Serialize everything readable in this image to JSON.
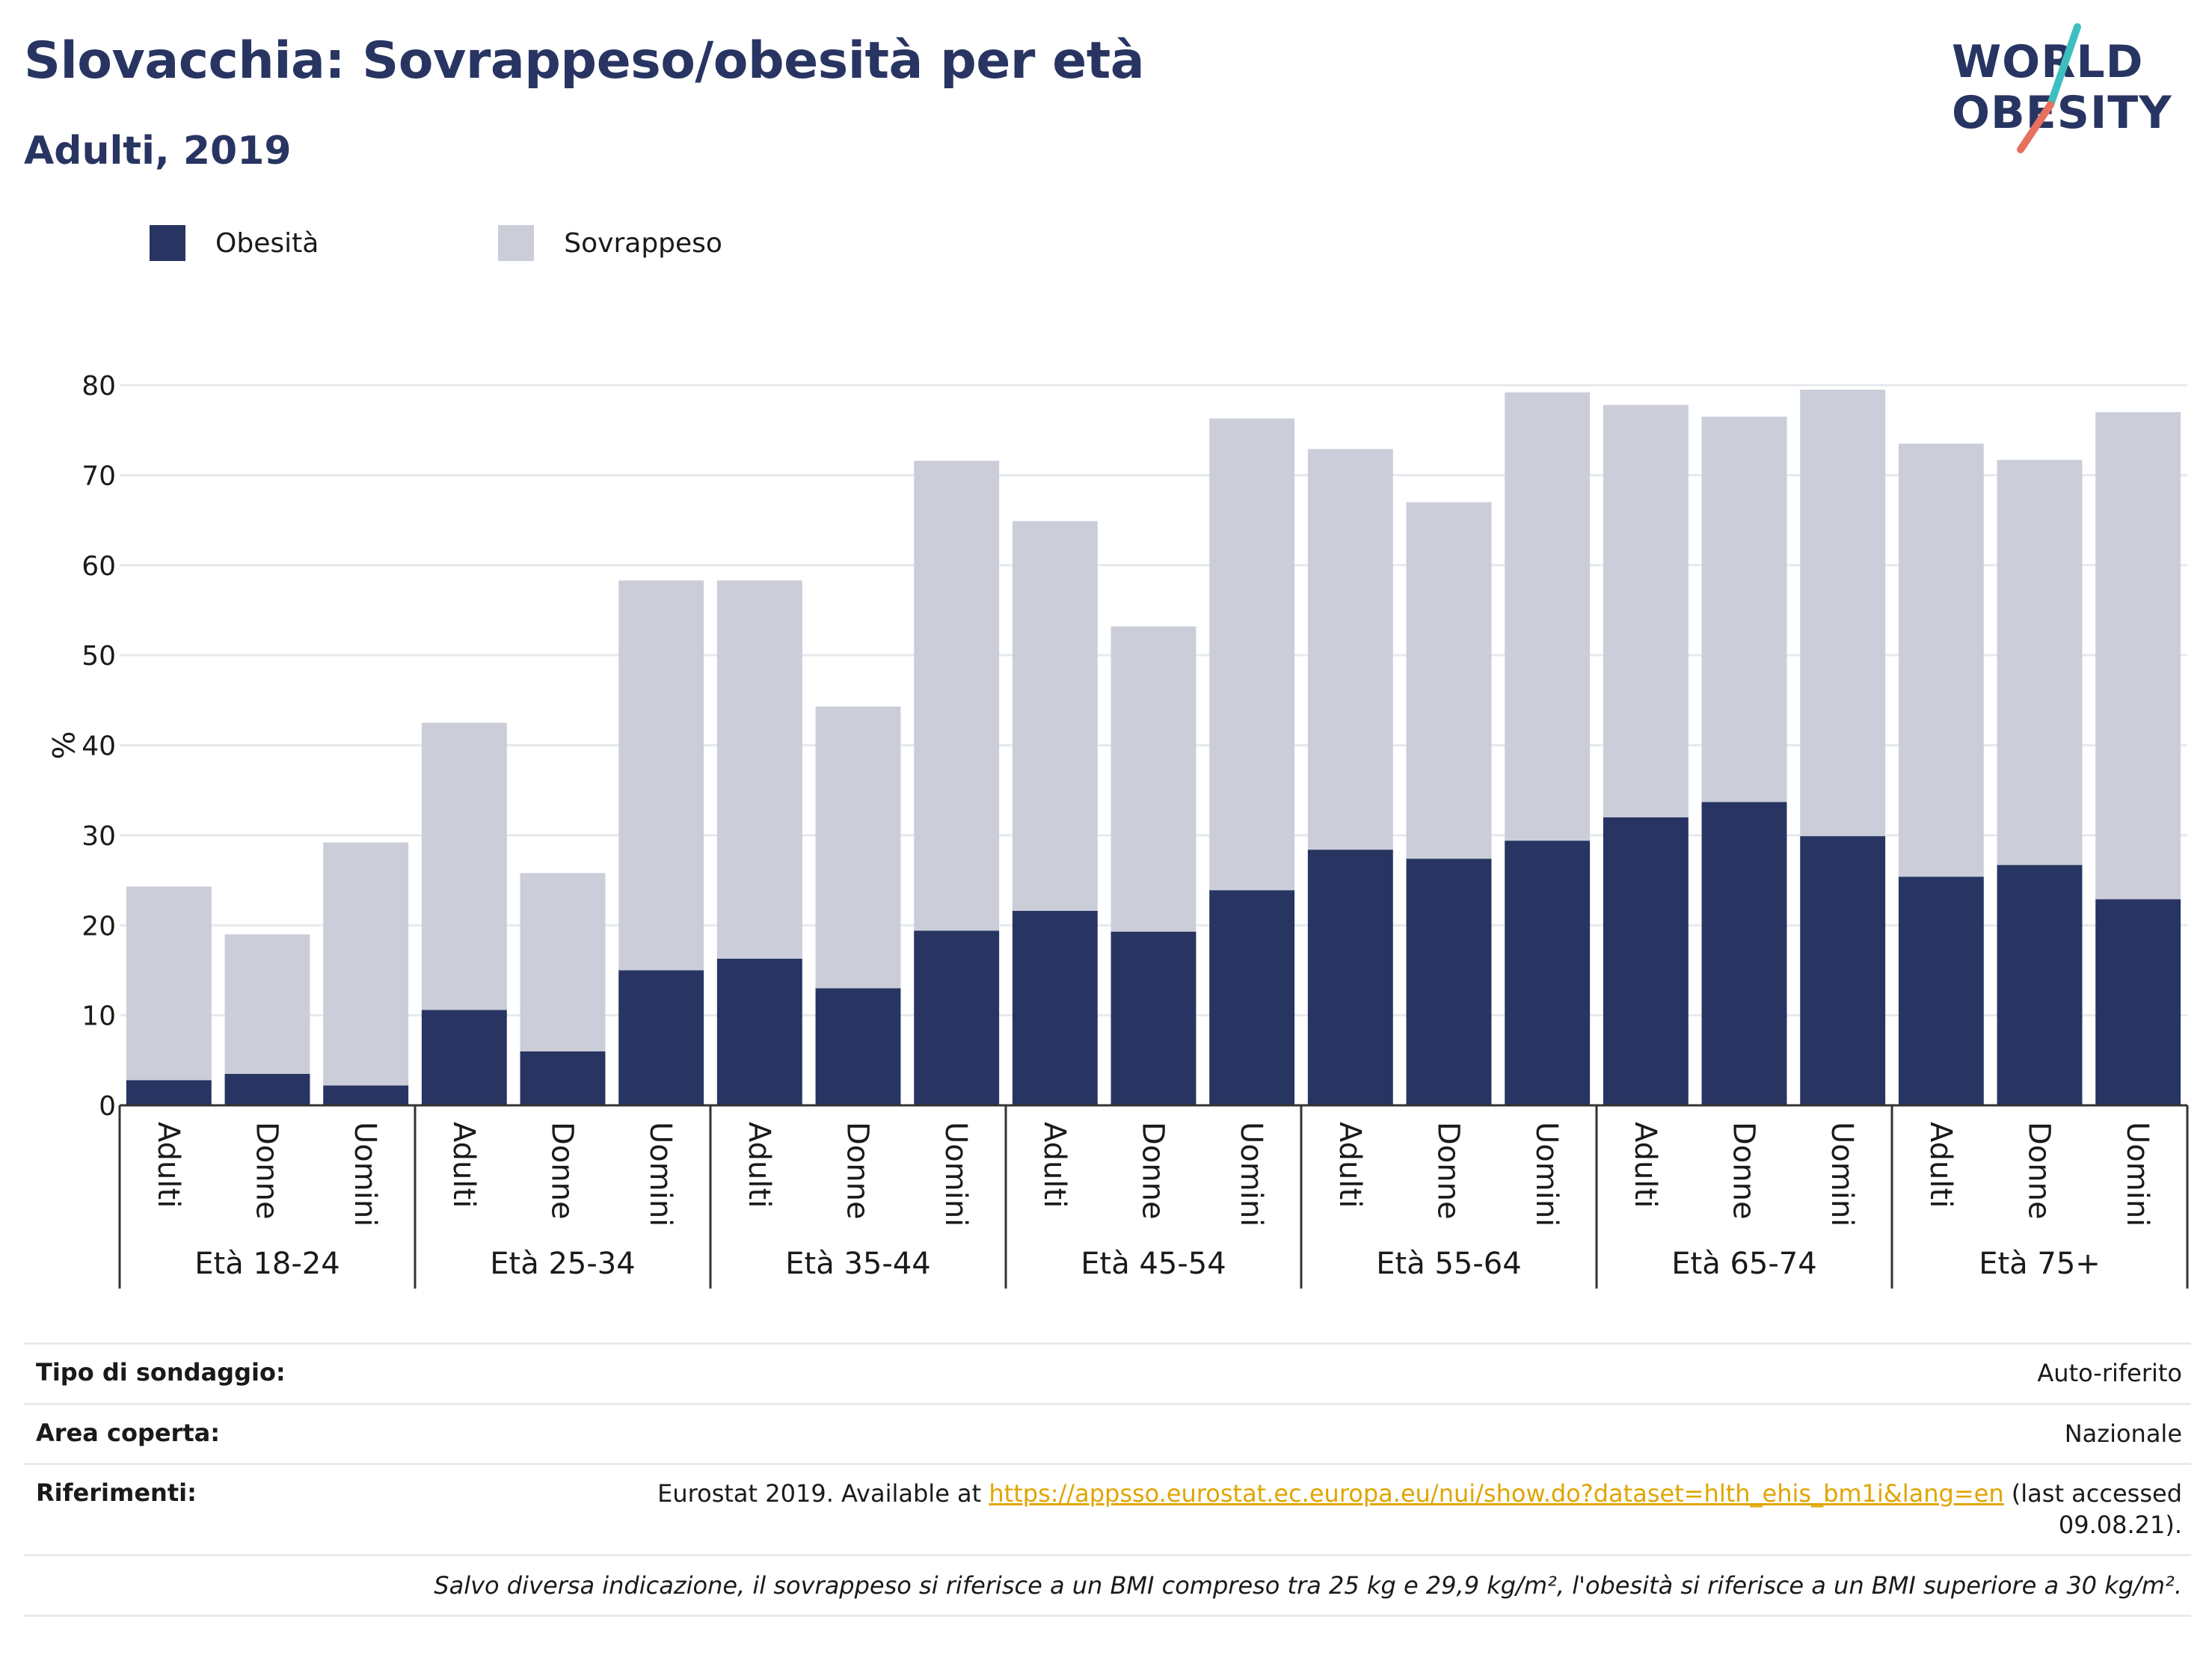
{
  "header": {
    "title": "Slovacchia: Sovrappeso/obesità per età",
    "subtitle": "Adulti, 2019"
  },
  "logo": {
    "line1": "WORLD",
    "line2": "OBESITY",
    "colors": {
      "text": "#283562",
      "slash_teal": "#3dbfc0",
      "slash_coral": "#e8705f"
    }
  },
  "legend": [
    {
      "label": "Obesità",
      "color": "#283562"
    },
    {
      "label": "Sovrappeso",
      "color": "#cbcdd9"
    }
  ],
  "chart_data": {
    "type": "bar",
    "stacked": true,
    "ylabel": "%",
    "ylim": [
      0,
      80
    ],
    "yticks": [
      0,
      10,
      20,
      30,
      40,
      50,
      60,
      70,
      80
    ],
    "grid": true,
    "groups": [
      "Età 18-24",
      "Età 25-34",
      "Età 35-44",
      "Età 45-54",
      "Età 55-64",
      "Età 65-74",
      "Età 75+"
    ],
    "subcategories": [
      "Adulti",
      "Donne",
      "Uomini"
    ],
    "series": [
      {
        "name": "Obesità",
        "color": "#283562",
        "values": [
          2.8,
          3.5,
          2.2,
          10.6,
          6.0,
          15.0,
          16.3,
          13.0,
          19.4,
          21.6,
          19.3,
          23.9,
          28.4,
          27.4,
          29.4,
          32.0,
          33.7,
          29.9,
          25.4,
          26.7,
          22.9
        ]
      },
      {
        "name": "Sovrappeso",
        "color": "#cbcdd9",
        "values": [
          21.5,
          15.5,
          27.0,
          31.9,
          19.8,
          43.3,
          42.0,
          31.3,
          52.2,
          43.3,
          33.9,
          52.4,
          44.5,
          39.6,
          49.8,
          45.8,
          42.8,
          49.6,
          48.1,
          45.0,
          54.1
        ]
      }
    ],
    "totals": [
      24.3,
      19.0,
      29.2,
      42.5,
      25.8,
      58.3,
      58.3,
      44.3,
      71.6,
      64.9,
      53.2,
      76.3,
      72.9,
      67.0,
      79.2,
      77.8,
      76.5,
      79.5,
      73.5,
      71.7,
      77.0
    ],
    "colors": {
      "axis": "#333333",
      "grid": "#e6e9ed",
      "tick_text": "#1a1a1a"
    }
  },
  "info": {
    "survey_label": "Tipo di sondaggio:",
    "survey_value": "Auto-riferito",
    "area_label": "Area coperta:",
    "area_value": "Nazionale",
    "ref_label": "Riferimenti:",
    "ref_prefix": "Eurostat 2019. Available at ",
    "ref_link": "https://appsso.eurostat.ec.europa.eu/nui/show.do?dataset=hlth_ehis_bm1i&lang=en",
    "ref_suffix": " (last accessed 09.08.21).",
    "note": "Salvo diversa indicazione, il sovrappeso si riferisce a un BMI compreso tra 25 kg e 29,9 kg/m², l'obesità si riferisce a un BMI superiore a 30 kg/m²."
  }
}
